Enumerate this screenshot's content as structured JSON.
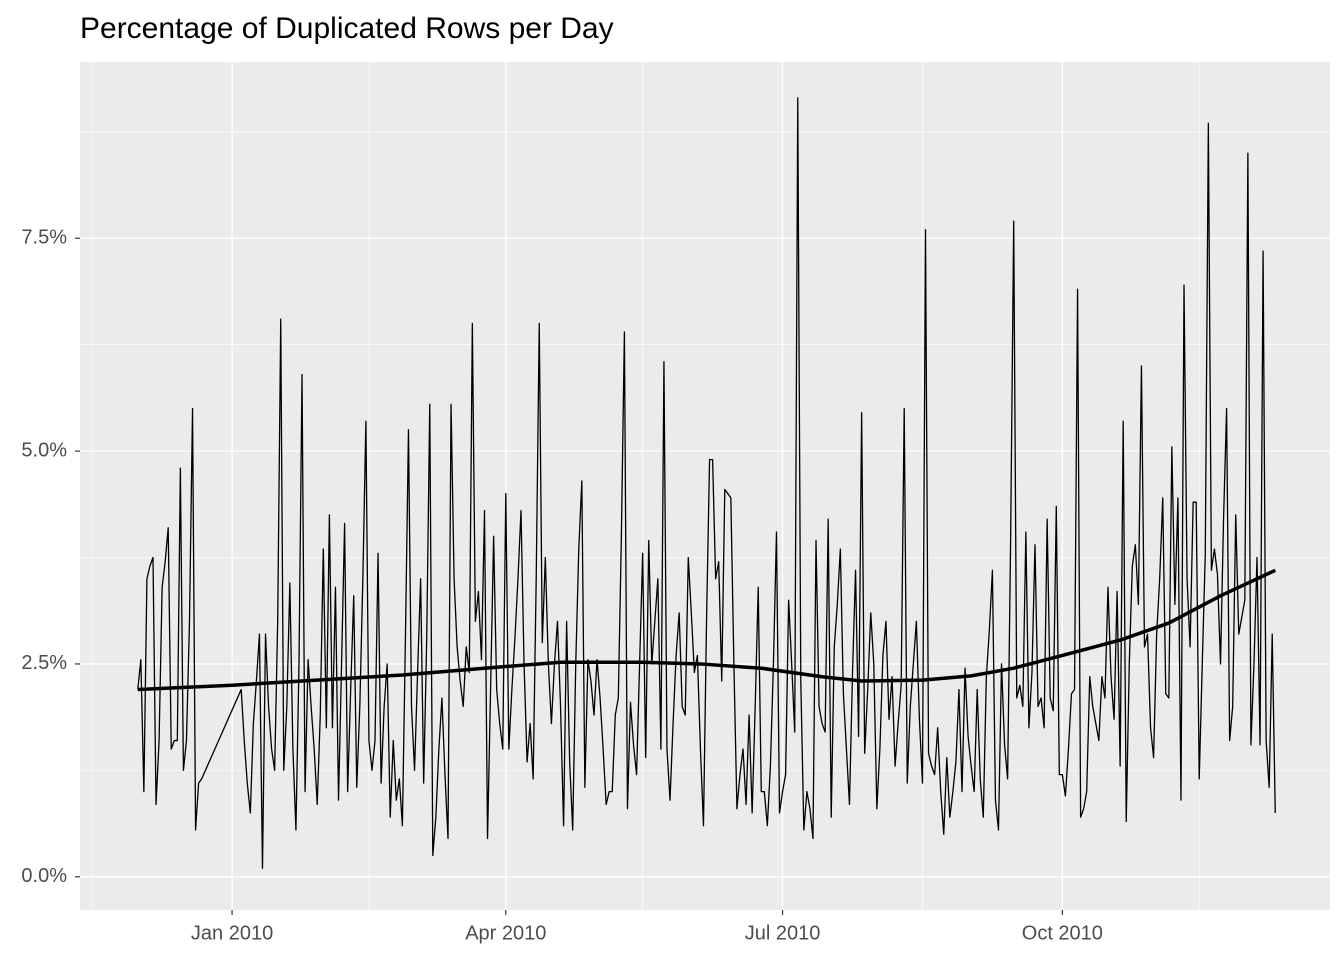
{
  "chart_data": {
    "type": "line",
    "title": "Percentage of Duplicated Rows per Day",
    "xlim": [
      "2009-11-12",
      "2010-12-28"
    ],
    "xticks": [
      {
        "value": "2010-01-01",
        "label": "Jan 2010"
      },
      {
        "value": "2010-04-01",
        "label": "Apr 2010"
      },
      {
        "value": "2010-07-01",
        "label": "Jul 2010"
      },
      {
        "value": "2010-10-01",
        "label": "Oct 2010"
      }
    ],
    "minor_xticks": [
      "2009-11-16",
      "2010-02-15",
      "2010-05-16",
      "2010-08-16",
      "2010-11-15"
    ],
    "ylim": [
      -0.39,
      9.57
    ],
    "yticks": [
      {
        "value": 0,
        "label": "0.0%"
      },
      {
        "value": 2.5,
        "label": "2.5%"
      },
      {
        "value": 5,
        "label": "5.0%"
      },
      {
        "value": 7.5,
        "label": "7.5%"
      }
    ],
    "minor_yticks": [
      1.25,
      3.75,
      6.25,
      8.75
    ],
    "grid": true,
    "background": "#ebebeb",
    "series": [
      {
        "color": "#000000",
        "width": 1.3,
        "x": [
          "2009-12-01",
          "2009-12-02",
          "2009-12-03",
          "2009-12-04",
          "2009-12-05",
          "2009-12-06",
          "2009-12-07",
          "2009-12-08",
          "2009-12-09",
          "2009-12-10",
          "2009-12-11",
          "2009-12-12",
          "2009-12-13",
          "2009-12-14",
          "2009-12-15",
          "2009-12-16",
          "2009-12-17",
          "2009-12-18",
          "2009-12-19",
          "2009-12-20",
          "2009-12-21",
          "2009-12-22",
          "2010-01-04",
          "2010-01-05",
          "2010-01-06",
          "2010-01-07",
          "2010-01-08",
          "2010-01-09",
          "2010-01-10",
          "2010-01-11",
          "2010-01-12",
          "2010-01-13",
          "2010-01-14",
          "2010-01-15",
          "2010-01-16",
          "2010-01-17",
          "2010-01-18",
          "2010-01-19",
          "2010-01-20",
          "2010-01-21",
          "2010-01-22",
          "2010-01-23",
          "2010-01-24",
          "2010-01-25",
          "2010-01-26",
          "2010-01-27",
          "2010-01-28",
          "2010-01-29",
          "2010-01-30",
          "2010-01-31",
          "2010-02-01",
          "2010-02-02",
          "2010-02-03",
          "2010-02-04",
          "2010-02-05",
          "2010-02-06",
          "2010-02-07",
          "2010-02-08",
          "2010-02-09",
          "2010-02-10",
          "2010-02-11",
          "2010-02-12",
          "2010-02-13",
          "2010-02-14",
          "2010-02-15",
          "2010-02-16",
          "2010-02-17",
          "2010-02-18",
          "2010-02-19",
          "2010-02-20",
          "2010-02-21",
          "2010-02-22",
          "2010-02-23",
          "2010-02-24",
          "2010-02-25",
          "2010-02-26",
          "2010-02-27",
          "2010-02-28",
          "2010-03-01",
          "2010-03-02",
          "2010-03-03",
          "2010-03-04",
          "2010-03-05",
          "2010-03-06",
          "2010-03-07",
          "2010-03-08",
          "2010-03-09",
          "2010-03-10",
          "2010-03-11",
          "2010-03-12",
          "2010-03-13",
          "2010-03-14",
          "2010-03-15",
          "2010-03-16",
          "2010-03-17",
          "2010-03-18",
          "2010-03-19",
          "2010-03-20",
          "2010-03-21",
          "2010-03-22",
          "2010-03-23",
          "2010-03-24",
          "2010-03-25",
          "2010-03-26",
          "2010-03-27",
          "2010-03-28",
          "2010-03-29",
          "2010-03-30",
          "2010-03-31",
          "2010-04-01",
          "2010-04-02",
          "2010-04-03",
          "2010-04-04",
          "2010-04-05",
          "2010-04-06",
          "2010-04-07",
          "2010-04-08",
          "2010-04-09",
          "2010-04-10",
          "2010-04-11",
          "2010-04-12",
          "2010-04-13",
          "2010-04-14",
          "2010-04-15",
          "2010-04-16",
          "2010-04-17",
          "2010-04-18",
          "2010-04-19",
          "2010-04-20",
          "2010-04-21",
          "2010-04-22",
          "2010-04-23",
          "2010-04-24",
          "2010-04-25",
          "2010-04-26",
          "2010-04-27",
          "2010-04-28",
          "2010-04-29",
          "2010-04-30",
          "2010-05-01",
          "2010-05-02",
          "2010-05-03",
          "2010-05-04",
          "2010-05-05",
          "2010-05-06",
          "2010-05-07",
          "2010-05-08",
          "2010-05-09",
          "2010-05-10",
          "2010-05-11",
          "2010-05-12",
          "2010-05-13",
          "2010-05-14",
          "2010-05-15",
          "2010-05-16",
          "2010-05-17",
          "2010-05-18",
          "2010-05-19",
          "2010-05-20",
          "2010-05-21",
          "2010-05-22",
          "2010-05-23",
          "2010-05-24",
          "2010-05-25",
          "2010-05-26",
          "2010-05-27",
          "2010-05-28",
          "2010-05-29",
          "2010-05-30",
          "2010-05-31",
          "2010-06-01",
          "2010-06-02",
          "2010-06-03",
          "2010-06-04",
          "2010-06-05",
          "2010-06-06",
          "2010-06-07",
          "2010-06-08",
          "2010-06-09",
          "2010-06-10",
          "2010-06-11",
          "2010-06-12",
          "2010-06-13",
          "2010-06-14",
          "2010-06-15",
          "2010-06-16",
          "2010-06-17",
          "2010-06-18",
          "2010-06-19",
          "2010-06-20",
          "2010-06-21",
          "2010-06-22",
          "2010-06-23",
          "2010-06-24",
          "2010-06-25",
          "2010-06-26",
          "2010-06-27",
          "2010-06-28",
          "2010-06-29",
          "2010-06-30",
          "2010-07-01",
          "2010-07-02",
          "2010-07-03",
          "2010-07-04",
          "2010-07-05",
          "2010-07-06",
          "2010-07-07",
          "2010-07-08",
          "2010-07-09",
          "2010-07-10",
          "2010-07-11",
          "2010-07-12",
          "2010-07-13",
          "2010-07-14",
          "2010-07-15",
          "2010-07-16",
          "2010-07-17",
          "2010-07-18",
          "2010-07-19",
          "2010-07-20",
          "2010-07-21",
          "2010-07-22",
          "2010-07-23",
          "2010-07-24",
          "2010-07-25",
          "2010-07-26",
          "2010-07-27",
          "2010-07-28",
          "2010-07-29",
          "2010-07-30",
          "2010-07-31",
          "2010-08-01",
          "2010-08-02",
          "2010-08-03",
          "2010-08-04",
          "2010-08-05",
          "2010-08-06",
          "2010-08-07",
          "2010-08-08",
          "2010-08-09",
          "2010-08-10",
          "2010-08-11",
          "2010-08-12",
          "2010-08-13",
          "2010-08-14",
          "2010-08-15",
          "2010-08-16",
          "2010-08-17",
          "2010-08-18",
          "2010-08-19",
          "2010-08-20",
          "2010-08-21",
          "2010-08-22",
          "2010-08-23",
          "2010-08-24",
          "2010-08-25",
          "2010-08-26",
          "2010-08-27",
          "2010-08-28",
          "2010-08-29",
          "2010-08-30",
          "2010-08-31",
          "2010-09-01",
          "2010-09-02",
          "2010-09-03",
          "2010-09-04",
          "2010-09-05",
          "2010-09-06",
          "2010-09-07",
          "2010-09-08",
          "2010-09-09",
          "2010-09-10",
          "2010-09-11",
          "2010-09-12",
          "2010-09-13",
          "2010-09-14",
          "2010-09-15",
          "2010-09-16",
          "2010-09-17",
          "2010-09-18",
          "2010-09-19",
          "2010-09-20",
          "2010-09-21",
          "2010-09-22",
          "2010-09-23",
          "2010-09-24",
          "2010-09-25",
          "2010-09-26",
          "2010-09-27",
          "2010-09-28",
          "2010-09-29",
          "2010-09-30",
          "2010-10-01",
          "2010-10-02",
          "2010-10-03",
          "2010-10-04",
          "2010-10-05",
          "2010-10-06",
          "2010-10-07",
          "2010-10-08",
          "2010-10-09",
          "2010-10-10",
          "2010-10-11",
          "2010-10-12",
          "2010-10-13",
          "2010-10-14",
          "2010-10-15",
          "2010-10-16",
          "2010-10-17",
          "2010-10-18",
          "2010-10-19",
          "2010-10-20",
          "2010-10-21",
          "2010-10-22",
          "2010-10-23",
          "2010-10-24",
          "2010-10-25",
          "2010-10-26",
          "2010-10-27",
          "2010-10-28",
          "2010-10-29",
          "2010-10-30",
          "2010-10-31",
          "2010-11-01",
          "2010-11-02",
          "2010-11-03",
          "2010-11-04",
          "2010-11-05",
          "2010-11-06",
          "2010-11-07",
          "2010-11-08",
          "2010-11-09",
          "2010-11-10",
          "2010-11-11",
          "2010-11-12",
          "2010-11-13",
          "2010-11-14",
          "2010-11-15",
          "2010-11-16",
          "2010-11-17",
          "2010-11-18",
          "2010-11-19",
          "2010-11-20",
          "2010-11-21",
          "2010-11-22",
          "2010-11-23",
          "2010-11-24",
          "2010-11-25",
          "2010-11-26",
          "2010-11-27",
          "2010-11-28",
          "2010-11-29",
          "2010-11-30",
          "2010-12-01",
          "2010-12-02",
          "2010-12-03",
          "2010-12-04",
          "2010-12-05",
          "2010-12-06",
          "2010-12-07",
          "2010-12-08",
          "2010-12-09",
          "2010-12-10"
        ],
        "values": [
          2.2,
          2.55,
          1.0,
          3.5,
          3.65,
          3.75,
          0.85,
          1.6,
          3.4,
          3.7,
          4.1,
          1.5,
          1.6,
          1.6,
          4.8,
          1.25,
          1.6,
          3.0,
          5.5,
          0.55,
          1.1,
          1.15,
          2.2,
          1.6,
          1.1,
          0.75,
          1.8,
          2.3,
          2.85,
          0.1,
          2.85,
          2.0,
          1.5,
          1.25,
          3.0,
          6.55,
          1.25,
          2.0,
          3.45,
          1.5,
          0.55,
          2.5,
          5.9,
          1.0,
          2.55,
          2.0,
          1.5,
          0.85,
          1.9,
          3.85,
          1.75,
          4.25,
          1.75,
          3.4,
          0.9,
          2.5,
          4.15,
          1.0,
          2.2,
          3.3,
          1.05,
          2.0,
          3.5,
          5.35,
          1.6,
          1.25,
          1.6,
          3.8,
          1.1,
          2.0,
          2.5,
          0.7,
          1.6,
          0.9,
          1.15,
          0.6,
          2.8,
          5.25,
          2.0,
          1.25,
          2.4,
          3.5,
          1.1,
          2.8,
          5.55,
          0.25,
          0.7,
          1.5,
          2.1,
          1.2,
          0.45,
          5.55,
          3.5,
          2.7,
          2.3,
          2.0,
          2.7,
          2.4,
          6.5,
          3.0,
          3.35,
          2.55,
          4.3,
          0.45,
          2.2,
          4.0,
          2.2,
          1.8,
          1.5,
          4.5,
          1.5,
          2.2,
          2.8,
          3.5,
          4.3,
          2.5,
          1.35,
          1.8,
          1.15,
          3.5,
          6.5,
          2.75,
          3.75,
          2.5,
          1.8,
          2.5,
          3.0,
          2.0,
          0.6,
          3.0,
          1.35,
          0.55,
          2.5,
          3.85,
          4.65,
          1.05,
          2.55,
          2.3,
          1.9,
          2.55,
          2.1,
          1.5,
          0.85,
          1.0,
          1.0,
          1.9,
          2.1,
          4.0,
          6.4,
          0.8,
          2.05,
          1.55,
          1.2,
          2.5,
          3.8,
          1.4,
          3.95,
          2.5,
          3.0,
          3.5,
          1.5,
          6.05,
          1.5,
          0.9,
          1.8,
          2.6,
          3.1,
          2.0,
          1.9,
          3.75,
          3.1,
          2.4,
          2.6,
          1.5,
          0.6,
          3.0,
          4.9,
          4.9,
          3.5,
          3.7,
          2.3,
          4.55,
          4.5,
          4.45,
          2.5,
          0.8,
          1.2,
          1.5,
          0.85,
          1.9,
          0.75,
          2.0,
          3.4,
          1.0,
          1.0,
          0.6,
          1.3,
          2.5,
          4.05,
          0.75,
          1.0,
          1.2,
          3.25,
          2.5,
          1.7,
          9.15,
          2.3,
          0.55,
          1.0,
          0.8,
          0.45,
          3.95,
          2.0,
          1.8,
          1.7,
          4.2,
          0.7,
          2.7,
          3.2,
          3.85,
          2.15,
          1.5,
          0.85,
          2.4,
          3.6,
          1.65,
          5.45,
          1.45,
          2.2,
          3.1,
          2.5,
          0.8,
          1.5,
          2.6,
          3.0,
          1.85,
          2.35,
          1.3,
          1.8,
          2.25,
          5.5,
          1.1,
          2.0,
          2.5,
          3.0,
          1.85,
          1.1,
          7.6,
          1.45,
          1.3,
          1.2,
          1.75,
          1.0,
          0.5,
          1.4,
          0.7,
          1.0,
          1.35,
          2.2,
          1.0,
          2.45,
          1.65,
          1.3,
          1.0,
          2.2,
          1.15,
          0.7,
          2.35,
          2.9,
          3.6,
          0.9,
          0.55,
          2.5,
          1.55,
          1.15,
          4.0,
          7.7,
          2.1,
          2.25,
          2.0,
          4.05,
          1.75,
          2.4,
          3.9,
          2.0,
          2.1,
          1.75,
          4.2,
          2.1,
          1.95,
          4.35,
          1.2,
          1.2,
          0.95,
          1.5,
          2.15,
          2.2,
          6.9,
          0.7,
          0.8,
          1.0,
          2.35,
          2.0,
          1.8,
          1.6,
          2.35,
          2.1,
          3.4,
          2.35,
          1.85,
          3.35,
          1.3,
          5.35,
          0.65,
          2.5,
          3.65,
          3.9,
          3.2,
          6.0,
          2.7,
          2.85,
          1.75,
          1.4,
          2.85,
          3.5,
          4.45,
          2.15,
          2.1,
          5.05,
          3.2,
          4.45,
          0.9,
          6.95,
          3.5,
          2.7,
          4.4,
          4.4,
          1.15,
          2.5,
          3.8,
          8.85,
          3.6,
          3.85,
          3.55,
          2.5,
          4.2,
          5.5,
          1.6,
          2.0,
          4.25,
          2.85,
          3.05,
          3.25,
          8.5,
          1.55,
          2.5,
          3.75,
          1.55,
          7.35,
          1.6,
          1.05,
          2.85,
          0.75
        ]
      },
      {
        "color": "#000000",
        "width": 3.5,
        "x": [
          "2009-12-01",
          "2010-01-01",
          "2010-01-24",
          "2010-02-26",
          "2010-04-01",
          "2010-04-19",
          "2010-05-16",
          "2010-06-04",
          "2010-06-24",
          "2010-07-14",
          "2010-07-27",
          "2010-08-16",
          "2010-09-01",
          "2010-09-15",
          "2010-10-01",
          "2010-10-20",
          "2010-11-05",
          "2010-11-22",
          "2010-12-10"
        ],
        "values": [
          2.2,
          2.25,
          2.3,
          2.37,
          2.47,
          2.52,
          2.52,
          2.5,
          2.45,
          2.35,
          2.3,
          2.31,
          2.36,
          2.45,
          2.6,
          2.78,
          2.98,
          3.3,
          3.6
        ]
      }
    ]
  }
}
